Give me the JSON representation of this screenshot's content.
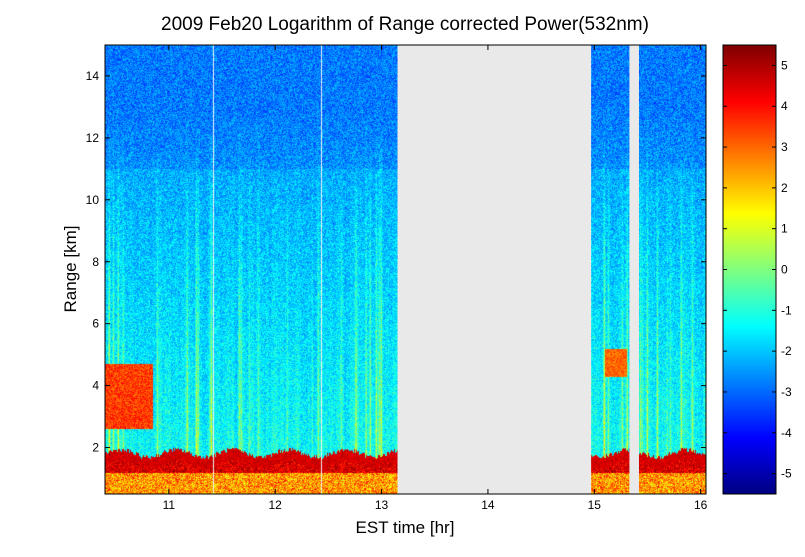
{
  "chart_data": {
    "type": "heatmap",
    "title": "2009 Feb20  Logarithm of Range corrected Power(532nm)",
    "xlabel": "EST time [hr]",
    "ylabel": "Range [km]",
    "xlim": [
      10.4,
      16.05
    ],
    "ylim": [
      0.5,
      15
    ],
    "x_ticks": [
      "11",
      "12",
      "13",
      "14",
      "15",
      "16"
    ],
    "y_ticks": [
      "2",
      "4",
      "6",
      "8",
      "10",
      "12",
      "14"
    ],
    "colorbar": {
      "range": [
        -5.5,
        5.5
      ],
      "ticks": [
        "5",
        "4",
        "3",
        "2",
        "1",
        "0",
        "-1",
        "-2",
        "-3",
        "-4",
        "-5"
      ],
      "colormap": "jet"
    },
    "no_data_intervals": [
      [
        13.15,
        14.97
      ],
      [
        15.33,
        15.42
      ]
    ],
    "no_data_color": "#e9e9e9",
    "layers": [
      {
        "feature": "boundary-layer aerosol",
        "range_km": [
          0.5,
          2.0
        ],
        "value": 4.5
      },
      {
        "feature": "elevated layer",
        "x_hr": [
          10.4,
          10.85
        ],
        "range_km": [
          2.6,
          4.7
        ],
        "value": 3.5
      },
      {
        "feature": "elevated layer",
        "x_hr": [
          15.1,
          15.3
        ],
        "range_km": [
          4.3,
          5.2
        ],
        "value": 3.0
      },
      {
        "feature": "free troposphere background",
        "range_km": [
          2.0,
          15.0
        ],
        "value": -2.5
      }
    ]
  }
}
